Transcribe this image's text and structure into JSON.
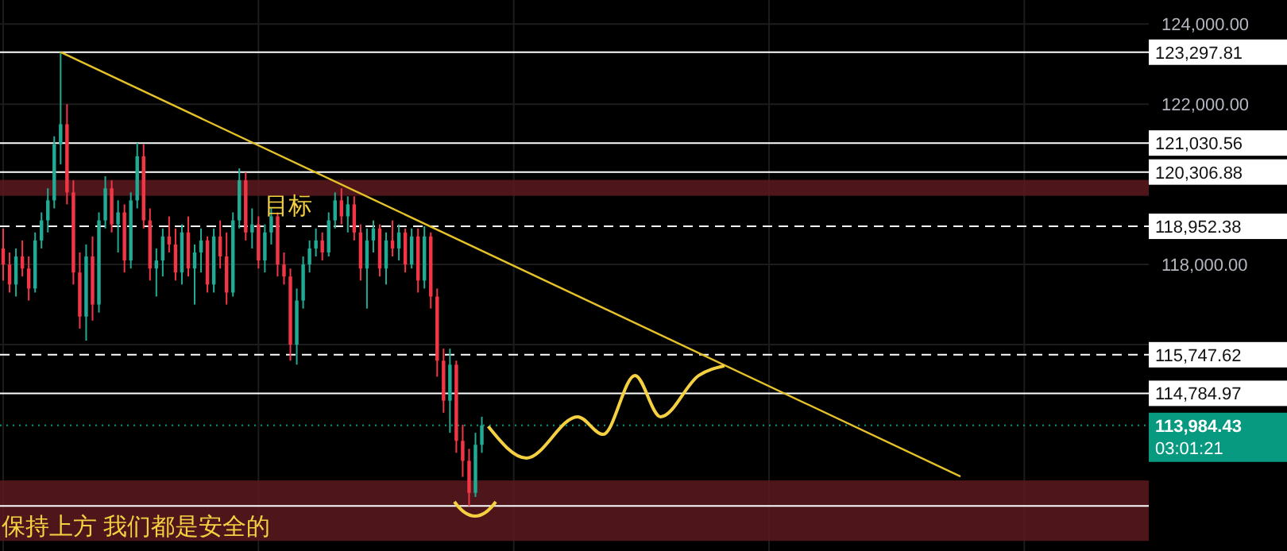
{
  "chart_data": {
    "type": "candlestick",
    "categories": [
      null,
      null,
      null,
      null,
      null,
      null,
      null,
      null,
      null,
      null,
      null,
      null,
      null,
      null,
      null,
      null,
      null,
      null,
      null,
      null,
      null,
      null,
      null,
      null,
      null,
      null,
      null,
      null,
      null,
      null,
      null,
      null,
      null,
      null,
      null,
      null,
      null,
      null,
      null,
      null,
      null,
      null,
      null,
      null,
      null,
      null,
      null,
      null,
      null,
      null,
      null,
      null,
      null,
      null,
      null,
      null,
      null,
      null,
      null,
      null,
      null,
      null,
      null,
      null,
      null,
      null,
      null,
      null,
      null,
      null,
      null,
      null,
      null,
      null,
      null,
      null,
      null,
      null,
      null,
      null,
      null,
      null,
      null,
      null,
      null,
      null,
      null,
      null,
      null,
      null,
      null,
      null,
      null,
      null,
      null,
      null,
      null,
      null,
      null,
      null,
      null,
      null,
      null,
      null,
      null,
      null,
      null,
      null,
      null,
      null,
      null,
      null,
      null,
      null,
      null,
      null,
      null,
      null,
      null,
      null,
      null,
      null,
      null,
      null,
      null,
      null,
      null,
      null,
      null,
      null,
      null,
      null,
      null,
      null,
      null,
      null,
      null,
      null,
      null,
      null,
      null,
      null,
      null,
      null,
      null,
      null,
      null,
      null,
      null,
      null,
      null,
      null,
      null,
      null,
      null,
      null,
      null,
      null,
      null,
      null,
      null,
      null,
      null,
      null,
      null,
      null,
      null,
      null,
      null,
      null,
      null,
      null,
      null,
      null,
      null,
      null,
      null,
      null,
      null,
      null
    ],
    "ohlc": [
      [
        118400,
        118900,
        117600,
        118000
      ],
      [
        118000,
        118300,
        117300,
        117500
      ],
      [
        117500,
        118400,
        117200,
        118200
      ],
      [
        118200,
        118600,
        117700,
        117900
      ],
      [
        117900,
        118200,
        117100,
        117400
      ],
      [
        117400,
        118800,
        117300,
        118600
      ],
      [
        118600,
        119300,
        118400,
        119100
      ],
      [
        119100,
        119900,
        118800,
        119600
      ],
      [
        119600,
        121200,
        119400,
        121000
      ],
      [
        121000,
        123297.81,
        120500,
        121500
      ],
      [
        121500,
        122000,
        119500,
        119800
      ],
      [
        119800,
        120100,
        117500,
        117800
      ],
      [
        117800,
        118300,
        116400,
        116700
      ],
      [
        116700,
        118500,
        116100,
        118200
      ],
      [
        118200,
        118700,
        116600,
        117000
      ],
      [
        117000,
        119300,
        116800,
        119100
      ],
      [
        119100,
        120200,
        118900,
        119900
      ],
      [
        119900,
        120100,
        118800,
        119000
      ],
      [
        119000,
        119600,
        118300,
        119300
      ],
      [
        119300,
        119500,
        117800,
        118100
      ],
      [
        118100,
        119800,
        117900,
        119600
      ],
      [
        119600,
        121030.56,
        119400,
        120700
      ],
      [
        120700,
        121000,
        118900,
        119100
      ],
      [
        119100,
        119400,
        117600,
        117900
      ],
      [
        117900,
        118400,
        117200,
        118100
      ],
      [
        118100,
        118900,
        117700,
        118700
      ],
      [
        118700,
        119200,
        118300,
        118500
      ],
      [
        118500,
        118900,
        117600,
        117800
      ],
      [
        117800,
        119000,
        117500,
        118800
      ],
      [
        118800,
        119200,
        117700,
        117900
      ],
      [
        117900,
        118500,
        117000,
        118300
      ],
      [
        118300,
        118900,
        117800,
        118600
      ],
      [
        118600,
        118700,
        117300,
        117500
      ],
      [
        117500,
        118900,
        117300,
        118700
      ],
      [
        118700,
        119100,
        117900,
        118200
      ],
      [
        118200,
        118800,
        117000,
        117300
      ],
      [
        117300,
        119300,
        117200,
        119100
      ],
      [
        119100,
        120400,
        118900,
        120100
      ],
      [
        120100,
        120300,
        118600,
        118800
      ],
      [
        118800,
        119400,
        118400,
        119000
      ],
      [
        119000,
        119200,
        117900,
        118100
      ],
      [
        118100,
        119000,
        117800,
        118800
      ],
      [
        118800,
        119400,
        118500,
        119200
      ],
      [
        119200,
        119300,
        117700,
        118000
      ],
      [
        118000,
        118300,
        117500,
        117700
      ],
      [
        117700,
        117900,
        115600,
        116000
      ],
      [
        116000,
        117400,
        115500,
        117100
      ],
      [
        117100,
        118200,
        116900,
        118000
      ],
      [
        118000,
        118600,
        117800,
        118400
      ],
      [
        118400,
        118900,
        118200,
        118600
      ],
      [
        118600,
        118800,
        118100,
        118300
      ],
      [
        118300,
        119300,
        118200,
        119100
      ],
      [
        119100,
        119800,
        118900,
        119600
      ],
      [
        119600,
        119900,
        119000,
        119200
      ],
      [
        119200,
        119700,
        118800,
        119500
      ],
      [
        119500,
        119700,
        118600,
        118800
      ],
      [
        118800,
        119000,
        117600,
        117900
      ],
      [
        117900,
        118900,
        116900,
        118600
      ],
      [
        118600,
        119100,
        118300,
        118900
      ],
      [
        118900,
        119000,
        117700,
        117900
      ],
      [
        117900,
        118800,
        117500,
        118600
      ],
      [
        118600,
        119100,
        118200,
        118400
      ],
      [
        118400,
        119000,
        118100,
        118800
      ],
      [
        118800,
        118900,
        117800,
        118000
      ],
      [
        118000,
        118900,
        117900,
        118700
      ],
      [
        118700,
        118900,
        117300,
        117600
      ],
      [
        117600,
        118952.38,
        117400,
        118700
      ],
      [
        118700,
        118800,
        116900,
        117200
      ],
      [
        117200,
        117400,
        115200,
        115600
      ],
      [
        115600,
        115900,
        114300,
        114600
      ],
      [
        114600,
        115900,
        113800,
        115500
      ],
      [
        115500,
        115600,
        113300,
        113600
      ],
      [
        113600,
        114000,
        112700,
        113100
      ],
      [
        113100,
        113400,
        111972,
        112300
      ],
      [
        112300,
        113800,
        112200,
        113500
      ],
      [
        113500,
        114200,
        113300,
        113984.43
      ],
      null,
      null,
      null,
      null,
      null,
      null,
      null,
      null,
      null,
      null,
      null,
      null,
      null,
      null,
      null,
      null,
      null,
      null,
      null,
      null,
      null,
      null,
      null,
      null,
      null,
      null,
      null,
      null,
      null,
      null,
      null,
      null,
      null,
      null,
      null,
      null,
      null,
      null,
      null,
      null,
      null,
      null,
      null,
      null,
      null,
      null,
      null,
      null,
      null,
      null,
      null,
      null,
      null,
      null,
      null,
      null,
      null,
      null,
      null,
      null,
      null,
      null,
      null,
      null,
      null,
      null,
      null,
      null,
      null,
      null,
      null,
      null,
      null,
      null,
      null,
      null,
      null,
      null,
      null,
      null,
      null,
      null,
      null,
      null,
      null,
      null,
      null,
      null,
      null,
      null,
      null,
      null,
      null,
      null,
      null,
      null,
      null,
      null,
      null,
      null,
      null,
      null,
      null,
      null
    ],
    "series": [
      {
        "type": "line",
        "color": "#e6c229",
        "values": [
          null,
          null,
          null,
          null,
          null,
          null,
          null,
          null,
          null,
          123300,
          null,
          null,
          null,
          null,
          null,
          null,
          null,
          null,
          null,
          null,
          null,
          null,
          null,
          null,
          null,
          null,
          null,
          null,
          null,
          null,
          null,
          null,
          null,
          null,
          null,
          null,
          null,
          null,
          null,
          null,
          null,
          null,
          null,
          null,
          null,
          null,
          null,
          null,
          null,
          null,
          null,
          null,
          null,
          null,
          null,
          null,
          null,
          null,
          null,
          null,
          null,
          null,
          null,
          null,
          null,
          null,
          null,
          null,
          null,
          null,
          null,
          null,
          null,
          null,
          null,
          null,
          null,
          null,
          null,
          null,
          null,
          null,
          null,
          null,
          null,
          null,
          null,
          null,
          null,
          null,
          null,
          null,
          null,
          null,
          null,
          null,
          null,
          null,
          null,
          null,
          null,
          null,
          null,
          null,
          null,
          null,
          null,
          null,
          null,
          null,
          null,
          null,
          null,
          null,
          null,
          null,
          null,
          null,
          null,
          null,
          null,
          null,
          null,
          null,
          null,
          null,
          null,
          null,
          null,
          null,
          null,
          null,
          null,
          null,
          null,
          null,
          null,
          null,
          null,
          null,
          null,
          null,
          null,
          null,
          null,
          null,
          null,
          null,
          null,
          null,
          112710,
          null,
          null,
          null,
          null,
          null,
          null,
          null,
          null,
          null,
          null,
          null,
          null,
          null,
          null,
          null,
          null,
          null,
          null,
          null,
          null,
          null,
          null,
          null,
          null,
          null,
          null,
          null,
          null,
          null
        ]
      },
      {
        "type": "line",
        "color": "#f5d142",
        "values": [
          null,
          null,
          null,
          null,
          null,
          null,
          null,
          null,
          null,
          null,
          null,
          null,
          null,
          null,
          null,
          null,
          null,
          null,
          null,
          null,
          null,
          null,
          null,
          null,
          null,
          null,
          null,
          null,
          null,
          null,
          null,
          null,
          null,
          null,
          null,
          null,
          null,
          null,
          null,
          null,
          null,
          null,
          null,
          null,
          null,
          null,
          null,
          null,
          null,
          null,
          null,
          null,
          null,
          null,
          null,
          null,
          null,
          null,
          null,
          null,
          null,
          null,
          null,
          null,
          null,
          null,
          null,
          null,
          null,
          null,
          null,
          null,
          null,
          null,
          null,
          null,
          113960,
          null,
          null,
          null,
          null,
          null,
          113170,
          null,
          null,
          null,
          null,
          null,
          null,
          null,
          114200,
          null,
          null,
          null,
          113760,
          null,
          null,
          null,
          null,
          115230,
          null,
          null,
          null,
          114200,
          null,
          null,
          null,
          null,
          null,
          115230,
          null,
          null,
          null,
          115470,
          null,
          null,
          null,
          null,
          null,
          null,
          null,
          null,
          null,
          null,
          null,
          null,
          null,
          null,
          null,
          null,
          null,
          null,
          null,
          null,
          null,
          null,
          null,
          null,
          null,
          null,
          null,
          null,
          null,
          null,
          null,
          null,
          null,
          null,
          null,
          null,
          null,
          null,
          null,
          null,
          null,
          null,
          null,
          null,
          null,
          null,
          null,
          null,
          null,
          null,
          null,
          null,
          null,
          null,
          null,
          null,
          null,
          null,
          null,
          null,
          null,
          null,
          null,
          null,
          null,
          null
        ]
      }
    ],
    "ylim": [
      110850,
      124600
    ],
    "yticks": [
      {
        "value": 116000,
        "label": null
      },
      {
        "value": 118000,
        "label": "118,000.00"
      },
      {
        "value": 122000,
        "label": "122,000.00"
      },
      {
        "value": 124000,
        "label": "124,000.00"
      }
    ],
    "ref_lines": [
      {
        "axis": "y",
        "value": 123297.81,
        "label": "123,297.81",
        "color": "#ffffff",
        "line_style": "solid"
      },
      {
        "axis": "y",
        "value": 121030.56,
        "label": "121,030.56",
        "color": "#ffffff",
        "line_style": "solid"
      },
      {
        "axis": "y",
        "value": 120306.88,
        "label": "120,306.88",
        "color": "#ffffff",
        "line_style": "solid"
      },
      {
        "axis": "y",
        "value": 118952.38,
        "label": "118,952.38",
        "color": "#ffffff",
        "line_style": "dashed"
      },
      {
        "axis": "y",
        "value": 115747.62,
        "label": "115,747.62",
        "color": "#ffffff",
        "line_style": "dashed"
      },
      {
        "axis": "y",
        "value": 114784.97,
        "label": "114,784.97",
        "color": "#ffffff",
        "line_style": "solid"
      },
      {
        "axis": "y",
        "value": 113984.43,
        "label": "113,984.43",
        "color": "#089981",
        "line_style": "dotted"
      },
      {
        "axis": "y",
        "value": 111972,
        "label": null,
        "color": "#ffffff",
        "line_style": "solid"
      }
    ],
    "bands": [
      {
        "axis": "y",
        "from": 119714,
        "to": 120111,
        "label": "目标",
        "color": "#5c1a1f"
      },
      {
        "axis": "y",
        "from": 111103,
        "to": 112611,
        "label": "保持上方 我们都是安全的",
        "color": "#5c1a1f"
      }
    ],
    "annotations": [
      "03:01:21"
    ],
    "grid": true,
    "tick_labels": "y"
  }
}
